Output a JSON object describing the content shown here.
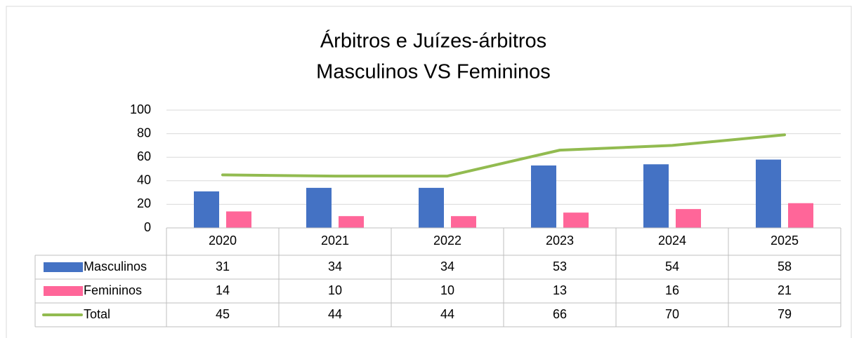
{
  "chart_data": {
    "type": "bar",
    "title": [
      "Árbitros e Juízes-árbitros",
      "Masculinos VS Femininos"
    ],
    "categories": [
      "2020",
      "2021",
      "2022",
      "2023",
      "2024",
      "2025"
    ],
    "series": [
      {
        "name": "Masculinos",
        "color": "#4472c4",
        "type": "bar",
        "values": [
          31,
          34,
          34,
          53,
          54,
          58
        ]
      },
      {
        "name": "Femininos",
        "color": "#ff6699",
        "type": "bar",
        "values": [
          14,
          10,
          10,
          13,
          16,
          21
        ]
      },
      {
        "name": "Total",
        "color": "#92bb50",
        "type": "line",
        "values": [
          45,
          44,
          44,
          66,
          70,
          79
        ]
      }
    ],
    "ylim": [
      0,
      100
    ],
    "yticks": [
      0,
      20,
      40,
      60,
      80,
      100
    ],
    "grid": true,
    "data_table": true
  }
}
